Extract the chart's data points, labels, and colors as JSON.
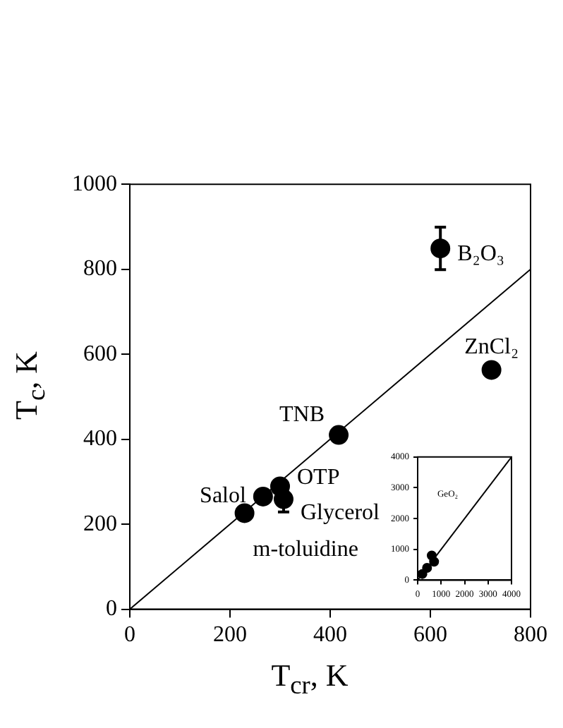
{
  "chart_data": [
    {
      "type": "scatter",
      "xlabel": "T$_{cr}$, K",
      "ylabel": "T$_{c}$, K",
      "xlim": [
        0,
        800
      ],
      "ylim": [
        0,
        1000
      ],
      "xticks": [
        0,
        200,
        400,
        600,
        800
      ],
      "yticks": [
        0,
        200,
        400,
        600,
        800,
        1000
      ],
      "grid": false,
      "legend": false,
      "series": [
        {
          "type": "scatter",
          "marker": "circle",
          "color": "#000000",
          "x": [
            229,
            266,
            300,
            307,
            417,
            620,
            722
          ],
          "values": [
            226,
            265,
            289,
            259,
            410,
            849,
            563
          ],
          "errors": [
            null,
            null,
            null,
            30,
            null,
            50,
            null
          ]
        },
        {
          "type": "line",
          "marker": "none",
          "color": "#000000",
          "line_style": "solid",
          "x": [
            0,
            800
          ],
          "values": [
            0,
            800
          ]
        }
      ],
      "annotations": [
        {
          "text": "m-toluidine",
          "x": 229,
          "y": 226
        },
        {
          "text": "Salol",
          "x": 266,
          "y": 265
        },
        {
          "text": "OTP",
          "x": 300,
          "y": 289
        },
        {
          "text": "Glycerol",
          "x": 307,
          "y": 259
        },
        {
          "text": "TNB",
          "x": 417,
          "y": 410
        },
        {
          "text": "B₂O₃",
          "x": 620,
          "y": 849
        },
        {
          "text": "ZnCl₂",
          "x": 722,
          "y": 563
        }
      ]
    },
    {
      "type": "scatter",
      "xlim": [
        0,
        4000
      ],
      "ylim": [
        0,
        4000
      ],
      "xticks": [
        0,
        1000,
        2000,
        3000,
        4000
      ],
      "yticks": [
        0,
        1000,
        2000,
        3000,
        4000
      ],
      "grid": false,
      "legend": false,
      "series": [
        {
          "type": "scatter",
          "marker": "circle",
          "color": "#000000",
          "x": [
            200,
            400,
            600,
            700
          ],
          "values": [
            200,
            400,
            800,
            600
          ]
        },
        {
          "type": "line",
          "marker": "none",
          "color": "#000000",
          "line_style": "solid",
          "x": [
            0,
            4000
          ],
          "values": [
            0,
            4000
          ]
        }
      ],
      "annotations": [
        "GeO₂"
      ]
    }
  ]
}
